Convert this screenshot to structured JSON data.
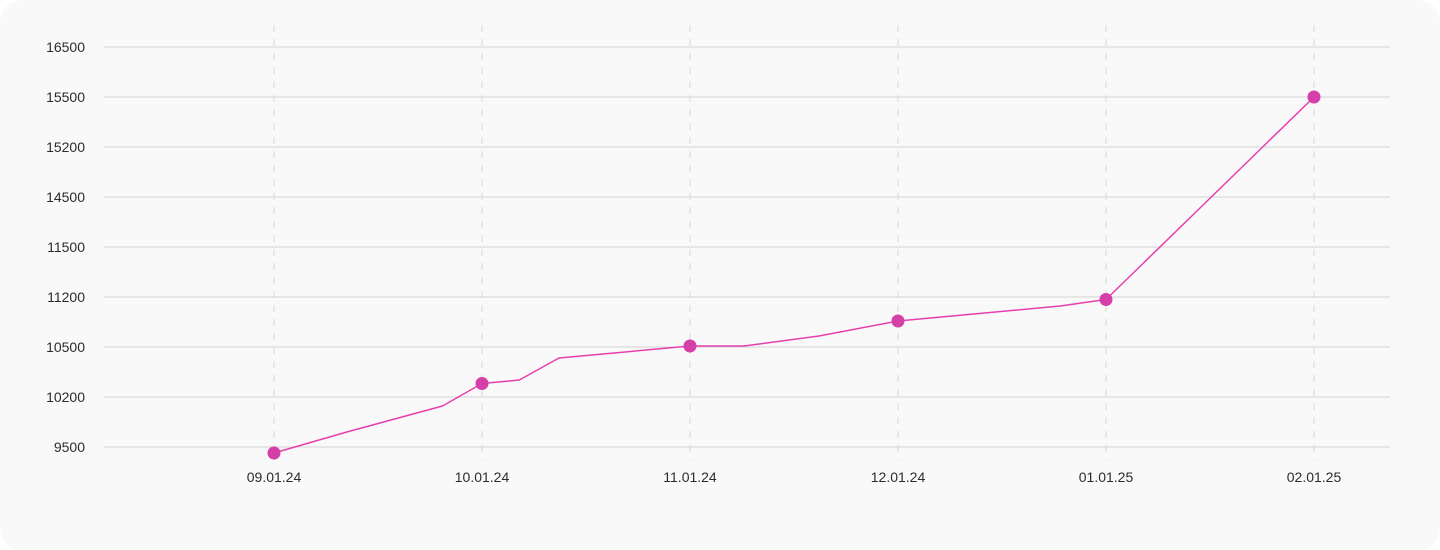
{
  "chart_data": {
    "type": "line",
    "title": "",
    "xlabel": "",
    "ylabel": "",
    "y_ticks": [
      "16500",
      "15500",
      "15200",
      "14500",
      "11500",
      "11200",
      "10500",
      "10200",
      "9500"
    ],
    "x_ticks": [
      "09.01.24",
      "10.01.24",
      "11.01.24",
      "12.01.24",
      "01.01.25",
      "02.01.25"
    ],
    "grid": {
      "horizontal": true,
      "vertical_dashed": true
    },
    "line_color": "#e63fae",
    "marker_color": "#d43fa8",
    "series": [
      {
        "values_in_tick_units": [
          {
            "x": 0.0,
            "y": -0.12
          },
          {
            "x": 0.35,
            "y": 0.3
          },
          {
            "x": 0.81,
            "y": 0.82
          },
          {
            "x": 1.0,
            "y": 1.27
          },
          {
            "x": 1.18,
            "y": 1.34
          },
          {
            "x": 1.37,
            "y": 1.78
          },
          {
            "x": 2.0,
            "y": 2.02
          },
          {
            "x": 2.26,
            "y": 2.02
          },
          {
            "x": 2.62,
            "y": 2.22
          },
          {
            "x": 3.0,
            "y": 2.52
          },
          {
            "x": 3.78,
            "y": 2.82
          },
          {
            "x": 4.0,
            "y": 2.95
          },
          {
            "x": 5.0,
            "y": 7.0
          }
        ],
        "markers_at_x": [
          0,
          1,
          2,
          3,
          4,
          5
        ]
      }
    ]
  }
}
